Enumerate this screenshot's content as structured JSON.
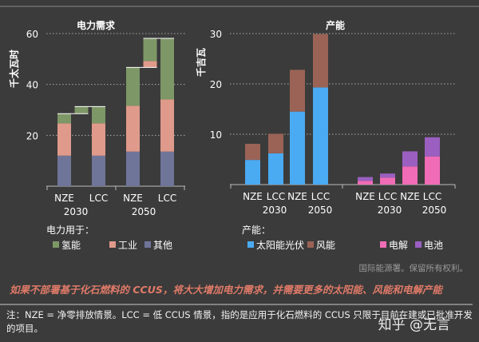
{
  "colors": {
    "background": "#3b3b3b",
    "hydrogen": "#7d9766",
    "industry": "#e09a8b",
    "other": "#6f7599",
    "solar": "#4aaaf2",
    "wind": "#9a6356",
    "electrolysis": "#f06cb6",
    "battery": "#9a5fc0",
    "headline": "#e07a68"
  },
  "chart_data": [
    {
      "type": "bar",
      "stacked": true,
      "title": "电力需求",
      "ylabel": "千太瓦时",
      "ylim": [
        0,
        60
      ],
      "yticks": [
        20,
        40,
        60
      ],
      "grid": true,
      "categories": [
        "NZE",
        "LCC",
        "NZE",
        "LCC"
      ],
      "groups": [
        "2030",
        "2050"
      ],
      "series": [
        {
          "name": "其他",
          "key": "other",
          "values": [
            12,
            12,
            13.6,
            13.6
          ]
        },
        {
          "name": "工业",
          "key": "industry",
          "values": [
            12.7,
            12.7,
            18,
            20.5
          ]
        },
        {
          "name": "氢能",
          "key": "hydrogen",
          "values": [
            3.8,
            6.6,
            15.1,
            24
          ]
        }
      ],
      "waterfall_bridges": true,
      "legend": {
        "title": "电力用于：",
        "items": [
          "氢能",
          "工业",
          "其他"
        ],
        "placement": "bottom"
      }
    },
    {
      "type": "bar",
      "stacked": true,
      "title": "产能",
      "ylabel": "千吉瓦",
      "ylim": [
        0,
        30
      ],
      "yticks": [
        10,
        20,
        30
      ],
      "grid": true,
      "categories": [
        "NZE",
        "LCC",
        "NZE",
        "LCC",
        "NZE",
        "LCC",
        "NZE",
        "LCC"
      ],
      "groups": [
        "2030",
        "2050",
        "2030",
        "2050"
      ],
      "series": [
        {
          "name": "太阳能光伏",
          "key": "solar",
          "values": [
            4.9,
            6.2,
            14.5,
            19.3,
            0,
            0,
            0,
            0
          ]
        },
        {
          "name": "风能",
          "key": "wind",
          "values": [
            3.2,
            3.9,
            8.3,
            10.6,
            0,
            0,
            0,
            0
          ]
        },
        {
          "name": "电解",
          "key": "electrolysis",
          "values": [
            0,
            0,
            0,
            0,
            0.75,
            1.4,
            3.6,
            5.6
          ]
        },
        {
          "name": "电池",
          "key": "battery",
          "values": [
            0,
            0,
            0,
            0,
            0.75,
            0.8,
            3,
            3.8
          ]
        }
      ],
      "legend": {
        "title": "产能：",
        "items": [
          "太阳能光伏",
          "风能",
          "电解",
          "电池"
        ],
        "placement": "bottom"
      }
    }
  ],
  "copyright": "国际能源署。保留所有权利。",
  "headline": "如果不部署基于化石燃料的 CCUS，将大大增加电力需求，并需要更多的太阳能、风能和电解产能",
  "note": "注：NZE = 净零排放情景。LCC = 低 CCUS 情景，指的是应用于化石燃料的 CCUS 只限于目前在建或已批准开发的项目。",
  "watermark": "知乎 @无言"
}
